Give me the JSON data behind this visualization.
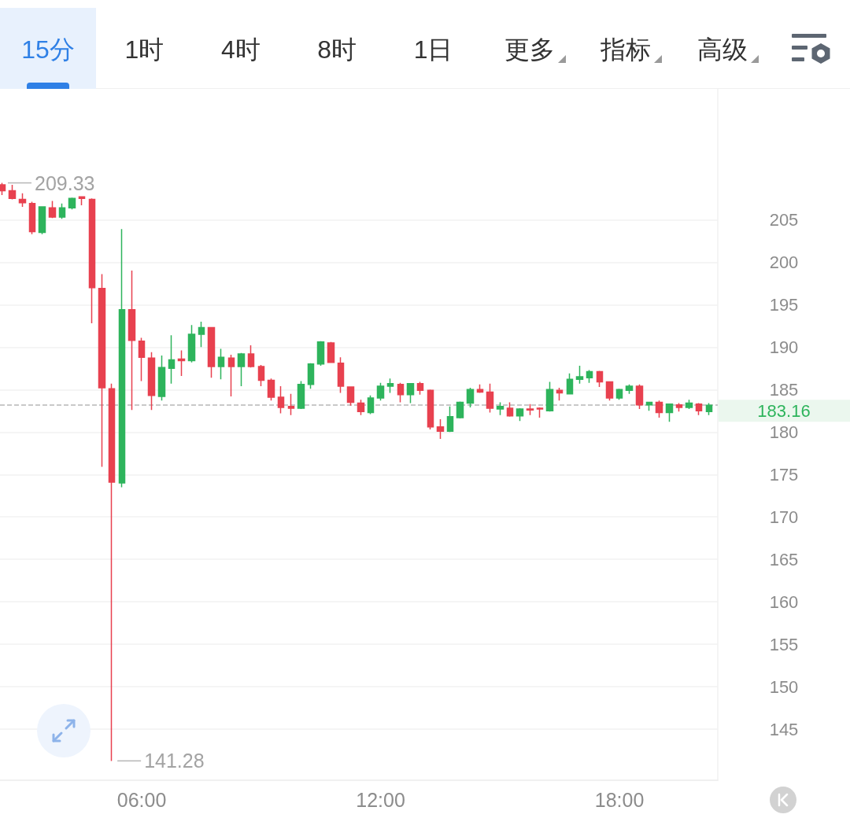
{
  "chart_data": {
    "type": "candlestick",
    "x": [
      2.5,
      2.75,
      3,
      3.25,
      3.5,
      3.75,
      4,
      4.25,
      4.5,
      4.75,
      5,
      5.25,
      5.5,
      5.75,
      6,
      6.25,
      6.5,
      6.75,
      7,
      7.25,
      7.5,
      7.75,
      8,
      8.25,
      8.5,
      8.75,
      9,
      9.25,
      9.5,
      9.75,
      10,
      10.25,
      10.5,
      10.75,
      11,
      11.25,
      11.5,
      11.75,
      12,
      12.25,
      12.5,
      12.75,
      13,
      13.25,
      13.5,
      13.75,
      14,
      14.25,
      14.5,
      14.75,
      15,
      15.25,
      15.5,
      15.75,
      16,
      16.25,
      16.5,
      16.75,
      17,
      17.25,
      17.5,
      17.75,
      18,
      18.25,
      18.5,
      18.75,
      19,
      19.25,
      19.5,
      19.75,
      20,
      20.25
    ],
    "ohlc": [
      [
        209.1,
        209.33,
        207.9,
        208.4
      ],
      [
        208.4,
        209.1,
        207.4,
        207.5
      ],
      [
        207.4,
        208.1,
        206.5,
        207.0
      ],
      [
        206.9,
        207.1,
        203.3,
        203.6
      ],
      [
        203.5,
        206.5,
        203.3,
        206.5
      ],
      [
        206.4,
        207.2,
        205.2,
        205.3
      ],
      [
        205.3,
        206.9,
        205.1,
        206.4
      ],
      [
        206.4,
        207.6,
        206.2,
        207.5
      ],
      [
        207.7,
        207.7,
        206.7,
        207.5
      ],
      [
        207.4,
        207.5,
        192.8,
        197.0
      ],
      [
        196.9,
        198.6,
        175.9,
        185.2
      ],
      [
        185.1,
        185.7,
        141.28,
        174.1
      ],
      [
        174.0,
        203.9,
        173.5,
        194.4
      ],
      [
        194.4,
        199.0,
        182.6,
        190.8
      ],
      [
        190.7,
        191.1,
        186.0,
        188.8
      ],
      [
        188.7,
        189.4,
        182.6,
        184.3
      ],
      [
        184.2,
        189.0,
        183.7,
        187.6
      ],
      [
        187.5,
        191.4,
        185.7,
        188.5
      ],
      [
        188.6,
        189.6,
        186.6,
        188.4
      ],
      [
        188.4,
        192.6,
        188.2,
        191.5
      ],
      [
        191.5,
        193.0,
        190.0,
        192.3
      ],
      [
        192.3,
        192.3,
        186.4,
        187.7
      ],
      [
        187.7,
        189.8,
        186.2,
        188.8
      ],
      [
        188.7,
        189.1,
        184.2,
        187.7
      ],
      [
        187.7,
        189.3,
        185.4,
        189.2
      ],
      [
        189.2,
        190.2,
        187.6,
        187.7
      ],
      [
        187.7,
        187.9,
        185.4,
        186.1
      ],
      [
        186.1,
        186.3,
        183.7,
        184.1
      ],
      [
        184.1,
        185.4,
        182.2,
        182.9
      ],
      [
        183.0,
        184.5,
        182.0,
        182.8
      ],
      [
        182.8,
        186.0,
        182.7,
        185.6
      ],
      [
        185.6,
        188.1,
        185.1,
        188.0
      ],
      [
        188.0,
        190.7,
        187.8,
        190.6
      ],
      [
        190.5,
        190.6,
        188.2,
        188.2
      ],
      [
        188.1,
        188.8,
        184.6,
        185.4
      ],
      [
        185.3,
        185.3,
        183.1,
        183.5
      ],
      [
        183.4,
        183.8,
        182.0,
        182.4
      ],
      [
        182.3,
        184.3,
        182.1,
        184.0
      ],
      [
        184.0,
        185.8,
        183.7,
        185.4
      ],
      [
        185.4,
        186.3,
        184.6,
        185.7
      ],
      [
        185.6,
        185.8,
        183.5,
        184.4
      ],
      [
        184.4,
        185.7,
        183.4,
        185.7
      ],
      [
        185.7,
        185.9,
        184.4,
        184.9
      ],
      [
        184.9,
        185.0,
        180.3,
        180.6
      ],
      [
        180.6,
        181.5,
        179.2,
        180.1
      ],
      [
        180.1,
        183.0,
        180.0,
        181.8
      ],
      [
        181.7,
        183.6,
        181.6,
        183.5
      ],
      [
        183.4,
        185.2,
        182.9,
        185.0
      ],
      [
        185.0,
        185.6,
        184.6,
        184.7
      ],
      [
        184.7,
        185.7,
        182.3,
        182.8
      ],
      [
        182.7,
        183.5,
        182.0,
        183.0
      ],
      [
        182.8,
        183.5,
        181.8,
        181.9
      ],
      [
        181.9,
        182.8,
        181.3,
        182.7
      ],
      [
        182.7,
        183.3,
        182.0,
        182.6
      ],
      [
        182.8,
        182.9,
        181.7,
        182.7
      ],
      [
        182.5,
        185.9,
        182.4,
        185.0
      ],
      [
        184.9,
        185.2,
        183.7,
        184.6
      ],
      [
        184.5,
        186.9,
        184.5,
        186.2
      ],
      [
        186.2,
        187.8,
        185.7,
        186.5
      ],
      [
        186.4,
        187.3,
        185.8,
        187.1
      ],
      [
        187.1,
        187.2,
        185.3,
        185.9
      ],
      [
        185.9,
        185.9,
        183.7,
        184.0
      ],
      [
        184.0,
        185.1,
        183.8,
        185.0
      ],
      [
        184.9,
        185.6,
        184.5,
        185.4
      ],
      [
        185.4,
        185.6,
        182.7,
        183.2
      ],
      [
        183.2,
        183.5,
        182.5,
        183.5
      ],
      [
        183.5,
        183.7,
        181.7,
        182.3
      ],
      [
        182.3,
        183.3,
        181.2,
        183.3
      ],
      [
        183.2,
        183.4,
        182.4,
        182.9
      ],
      [
        182.9,
        183.8,
        182.7,
        183.4
      ],
      [
        183.3,
        183.4,
        182.0,
        182.5
      ],
      [
        182.4,
        183.4,
        182.0,
        183.16
      ]
    ],
    "colors": [
      "#e8414f",
      "#e8414f",
      "#e8414f",
      "#e8414f",
      "#2eb45c",
      "#e8414f",
      "#2eb45c",
      "#2eb45c",
      "#e8414f",
      "#e8414f",
      "#e8414f",
      "#e8414f",
      "#2eb45c",
      "#e8414f",
      "#e8414f",
      "#e8414f",
      "#2eb45c",
      "#2eb45c",
      "#e8414f",
      "#2eb45c",
      "#2eb45c",
      "#e8414f",
      "#2eb45c",
      "#e8414f",
      "#2eb45c",
      "#e8414f",
      "#e8414f",
      "#e8414f",
      "#e8414f",
      "#e8414f",
      "#2eb45c",
      "#2eb45c",
      "#2eb45c",
      "#e8414f",
      "#e8414f",
      "#e8414f",
      "#e8414f",
      "#2eb45c",
      "#2eb45c",
      "#2eb45c",
      "#e8414f",
      "#2eb45c",
      "#e8414f",
      "#e8414f",
      "#e8414f",
      "#2eb45c",
      "#2eb45c",
      "#2eb45c",
      "#e8414f",
      "#e8414f",
      "#2eb45c",
      "#e8414f",
      "#2eb45c",
      "#e8414f",
      "#e8414f",
      "#2eb45c",
      "#e8414f",
      "#2eb45c",
      "#2eb45c",
      "#2eb45c",
      "#e8414f",
      "#e8414f",
      "#2eb45c",
      "#2eb45c",
      "#e8414f",
      "#2eb45c",
      "#e8414f",
      "#2eb45c",
      "#e8414f",
      "#2eb45c",
      "#e8414f",
      "#2eb45c"
    ],
    "xlim": [
      2.44,
      20.47
    ],
    "xticks": [
      {
        "value": 6,
        "label": "06:00"
      },
      {
        "value": 12,
        "label": "12:00"
      },
      {
        "value": 18,
        "label": "18:00"
      }
    ],
    "ylim": [
      139,
      220.4
    ],
    "yticks": [
      145,
      150,
      155,
      160,
      165,
      170,
      175,
      180,
      185,
      190,
      195,
      200,
      205
    ],
    "grid": "y",
    "ref_lines": [
      {
        "axis": "y",
        "value": 183.16,
        "label": "183.16",
        "color": "#b8b8b8",
        "line_style": "dashed"
      }
    ],
    "annotations": [
      "15分",
      "1时",
      "4时",
      "8时",
      "1日",
      "更多",
      "指标",
      "高级",
      {
        "text": "209.33",
        "x": 2.5,
        "y": 209.33
      },
      {
        "text": "141.28",
        "x": 5.25,
        "y": 141.28
      }
    ]
  }
}
